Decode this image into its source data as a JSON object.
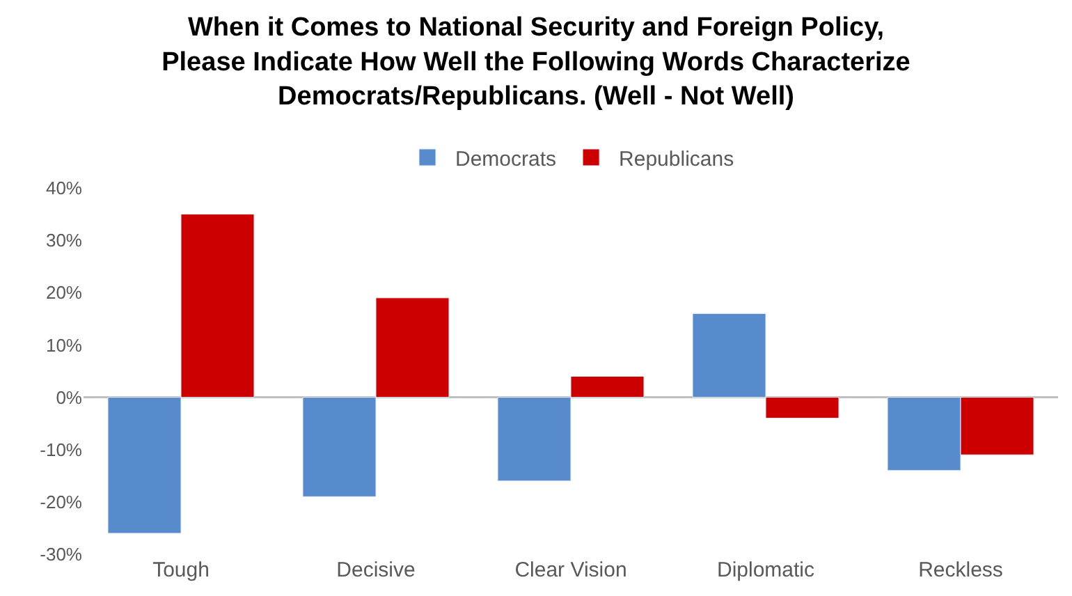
{
  "chart_data": {
    "type": "bar",
    "title": "When it Comes to National Security and Foreign Policy,\nPlease Indicate How Well the Following Words Characterize\nDemocrats/Republicans. (Well - Not Well)",
    "categories": [
      "Tough",
      "Decisive",
      "Clear Vision",
      "Diplomatic",
      "Reckless"
    ],
    "series": [
      {
        "name": "Democrats",
        "color": "#588bcb",
        "values": [
          -26,
          -19,
          -16,
          16,
          -14
        ]
      },
      {
        "name": "Republicans",
        "color": "#cc0000",
        "values": [
          35,
          19,
          4,
          -4,
          -11
        ]
      }
    ],
    "ylim": [
      -30,
      40
    ],
    "yticks": [
      {
        "value": -30,
        "label": "-30%"
      },
      {
        "value": -20,
        "label": "-20%"
      },
      {
        "value": -10,
        "label": "-10%"
      },
      {
        "value": 0,
        "label": "0%"
      },
      {
        "value": 10,
        "label": "10%"
      },
      {
        "value": 20,
        "label": "20%"
      },
      {
        "value": 30,
        "label": "30%"
      },
      {
        "value": 40,
        "label": "40%"
      }
    ],
    "ref_lines": [
      {
        "axis": "y",
        "value": 0,
        "color": "#bfbfbf"
      }
    ],
    "grid": false,
    "legend": "top"
  }
}
